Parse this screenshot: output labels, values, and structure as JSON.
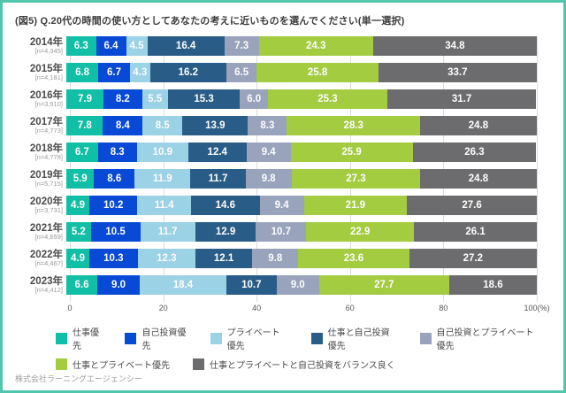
{
  "title": "(図5) Q.20代の時間の使い方としてあなたの考えに近いものを選んでください(単一選択)",
  "footer": "株式会社ラーニングエージェンシー",
  "frame_border_color": "#52c6ac",
  "chart_data": {
    "type": "bar",
    "variant": "horizontal-stacked",
    "unit": "%",
    "categories": [
      "2014年",
      "2015年",
      "2016年",
      "2017年",
      "2018年",
      "2019年",
      "2020年",
      "2021年",
      "2022年",
      "2023年"
    ],
    "sample_sizes": [
      "[n=4,345]",
      "[n=4,181]",
      "[n=3,910]",
      "[n=4,773]",
      "[n=4,778]",
      "[n=5,715]",
      "[n=3,731]",
      "[n=4,659]",
      "[n=4,467]",
      "[n=4,412]"
    ],
    "series": [
      {
        "name": "仕事優先",
        "color": "#10bfa5",
        "values": [
          6.3,
          6.8,
          7.9,
          7.8,
          6.7,
          5.9,
          4.9,
          5.2,
          4.9,
          6.6
        ]
      },
      {
        "name": "自己投資優先",
        "color": "#0849d6",
        "values": [
          6.4,
          6.7,
          8.2,
          8.4,
          8.3,
          8.6,
          10.2,
          10.5,
          10.3,
          9.0
        ]
      },
      {
        "name": "プライベート優先",
        "color": "#9cd2e6",
        "values": [
          4.5,
          4.3,
          5.5,
          8.5,
          10.9,
          11.9,
          11.4,
          11.7,
          12.3,
          18.4
        ]
      },
      {
        "name": "仕事と自己投資優先",
        "color": "#295d88",
        "values": [
          16.4,
          16.2,
          15.3,
          13.9,
          12.4,
          11.7,
          14.6,
          12.9,
          12.1,
          10.7
        ]
      },
      {
        "name": "自己投資とプライベート優先",
        "color": "#99a3bc",
        "values": [
          7.3,
          6.5,
          6.0,
          8.3,
          9.4,
          9.8,
          9.4,
          10.7,
          9.8,
          9.0
        ]
      },
      {
        "name": "仕事とプライベート優先",
        "color": "#a4cc40",
        "values": [
          24.3,
          25.8,
          25.3,
          28.3,
          25.9,
          27.3,
          21.9,
          22.9,
          23.6,
          27.7
        ]
      },
      {
        "name": "仕事とプライベートと自己投資をバランス良く",
        "color": "#6c6c6e",
        "values": [
          34.8,
          33.7,
          31.7,
          24.8,
          26.3,
          24.8,
          27.6,
          26.1,
          27.2,
          18.6
        ]
      }
    ],
    "x_ticks": [
      "0",
      "20",
      "40",
      "60",
      "80",
      "100(%)"
    ],
    "xlim": [
      0,
      100
    ],
    "grid": true,
    "legend_position": "bottom",
    "legend_rows": [
      [
        0,
        1,
        2,
        3,
        4
      ],
      [
        5,
        6
      ]
    ]
  }
}
